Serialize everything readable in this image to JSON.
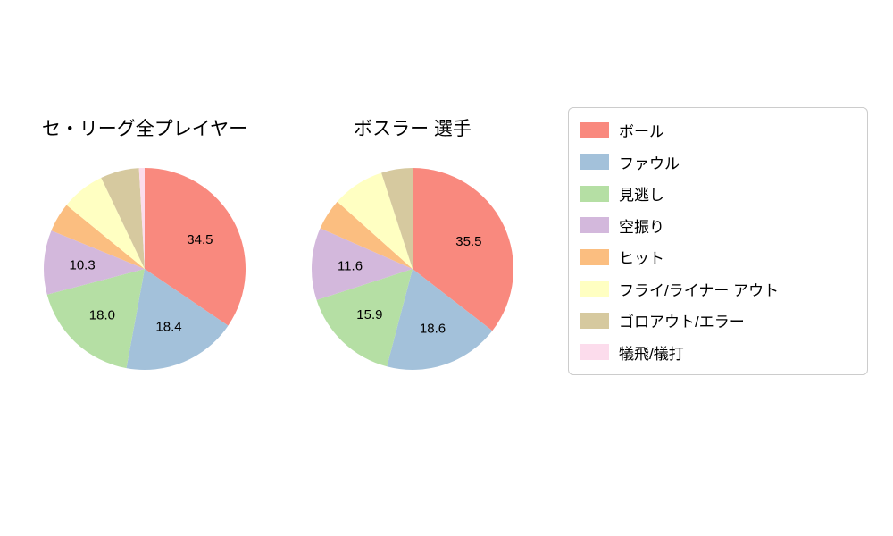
{
  "chart_data": [
    {
      "type": "pie",
      "title": "セ・リーグ全プレイヤー",
      "start_angle": 90,
      "direction": "clockwise",
      "slices": [
        {
          "name": "ボール",
          "value": 34.5,
          "label": "34.5"
        },
        {
          "name": "ファウル",
          "value": 18.4,
          "label": "18.4"
        },
        {
          "name": "見逃し",
          "value": 18.0,
          "label": "18.0"
        },
        {
          "name": "空振り",
          "value": 10.3,
          "label": "10.3"
        },
        {
          "name": "ヒット",
          "value": 4.7,
          "label": ""
        },
        {
          "name": "フライ/ライナー アウト",
          "value": 7.0,
          "label": ""
        },
        {
          "name": "ゴロアウト/エラー",
          "value": 6.2,
          "label": ""
        },
        {
          "name": "犠飛/犠打",
          "value": 0.9,
          "label": ""
        }
      ]
    },
    {
      "type": "pie",
      "title": "ボスラー 選手",
      "start_angle": 90,
      "direction": "clockwise",
      "slices": [
        {
          "name": "ボール",
          "value": 35.5,
          "label": "35.5"
        },
        {
          "name": "ファウル",
          "value": 18.6,
          "label": "18.6"
        },
        {
          "name": "見逃し",
          "value": 15.9,
          "label": "15.9"
        },
        {
          "name": "空振り",
          "value": 11.6,
          "label": "11.6"
        },
        {
          "name": "ヒット",
          "value": 5.0,
          "label": ""
        },
        {
          "name": "フライ/ライナー アウト",
          "value": 8.4,
          "label": ""
        },
        {
          "name": "ゴロアウト/エラー",
          "value": 5.0,
          "label": ""
        },
        {
          "name": "犠飛/犠打",
          "value": 0.0,
          "label": ""
        }
      ]
    }
  ],
  "legend": {
    "position": "right",
    "items": [
      {
        "label": "ボール",
        "color": "#f9897e"
      },
      {
        "label": "ファウル",
        "color": "#a3c1da"
      },
      {
        "label": "見逃し",
        "color": "#b5dfa4"
      },
      {
        "label": "空振り",
        "color": "#d3b8dc"
      },
      {
        "label": "ヒット",
        "color": "#fbbe80"
      },
      {
        "label": "フライ/ライナー アウト",
        "color": "#ffffc2"
      },
      {
        "label": "ゴロアウト/エラー",
        "color": "#d6c99f"
      },
      {
        "label": "犠飛/犠打",
        "color": "#fcdcec"
      }
    ]
  }
}
